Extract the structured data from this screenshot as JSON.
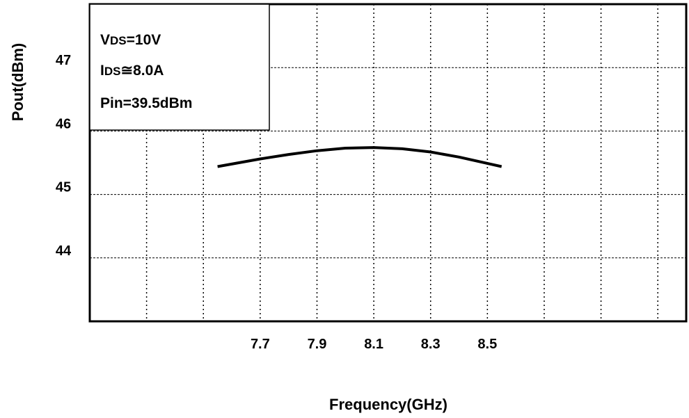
{
  "chart_data": {
    "type": "line",
    "xlabel": "Frequency(GHz)",
    "ylabel": "Pout(dBm)",
    "xlim": [
      7.1,
      9.2
    ],
    "ylim": [
      43,
      48
    ],
    "x_ticks": [
      "7.7",
      "7.9",
      "8.1",
      "8.3",
      "8.5"
    ],
    "y_ticks": [
      "44",
      "45",
      "46",
      "47"
    ],
    "grid": true,
    "annotation": {
      "lines": [
        {
          "main": "V",
          "sub": "DS",
          "rest": "=10V"
        },
        {
          "main": "I",
          "sub": "DS",
          "rest": "≅8.0A"
        },
        {
          "main": "Pin=39.5dBm",
          "sub": "",
          "rest": ""
        }
      ],
      "placement": "top-left"
    },
    "series": [
      {
        "x": [
          7.55,
          7.7,
          7.8,
          7.9,
          8.0,
          8.1,
          8.2,
          8.3,
          8.4,
          8.5,
          8.55
        ],
        "y": [
          45.44,
          45.56,
          45.63,
          45.69,
          45.73,
          45.74,
          45.72,
          45.67,
          45.59,
          45.49,
          45.44
        ],
        "color": "#000000"
      }
    ]
  }
}
